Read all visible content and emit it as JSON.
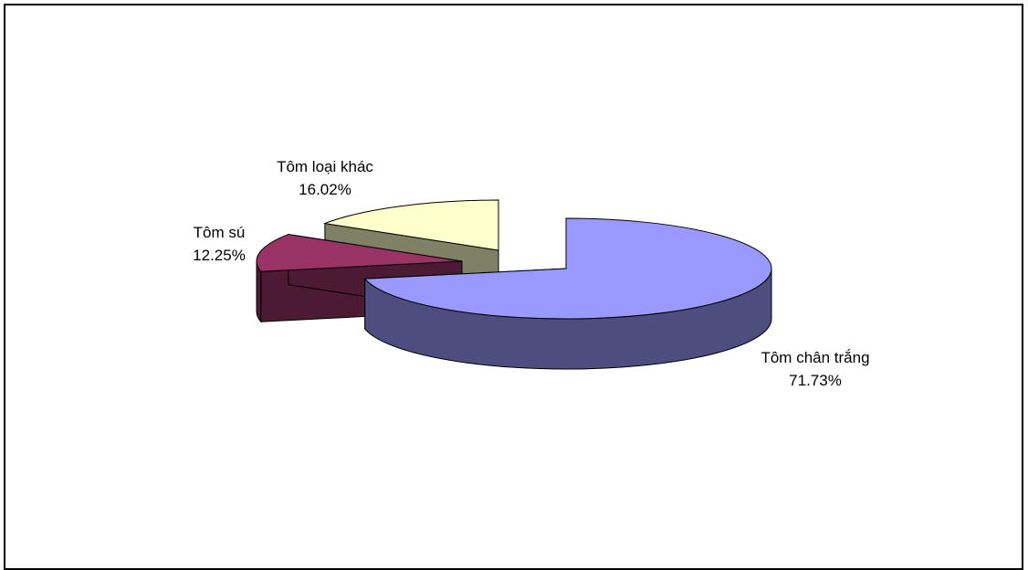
{
  "chart_data": {
    "type": "pie",
    "style": "3d-exploded",
    "slices": [
      {
        "label": "Tôm chân trắng",
        "value": 71.73,
        "value_text": "71.73%",
        "color": "#9999ff",
        "side_color": "#4d4d80"
      },
      {
        "label": "Tôm sú",
        "value": 12.25,
        "value_text": "12.25%",
        "color": "#993366",
        "side_color": "#4d1a33"
      },
      {
        "label": "Tôm loại khác",
        "value": 16.02,
        "value_text": "16.02%",
        "color": "#ffffcc",
        "side_color": "#808066"
      }
    ],
    "legend": "none",
    "title": ""
  }
}
